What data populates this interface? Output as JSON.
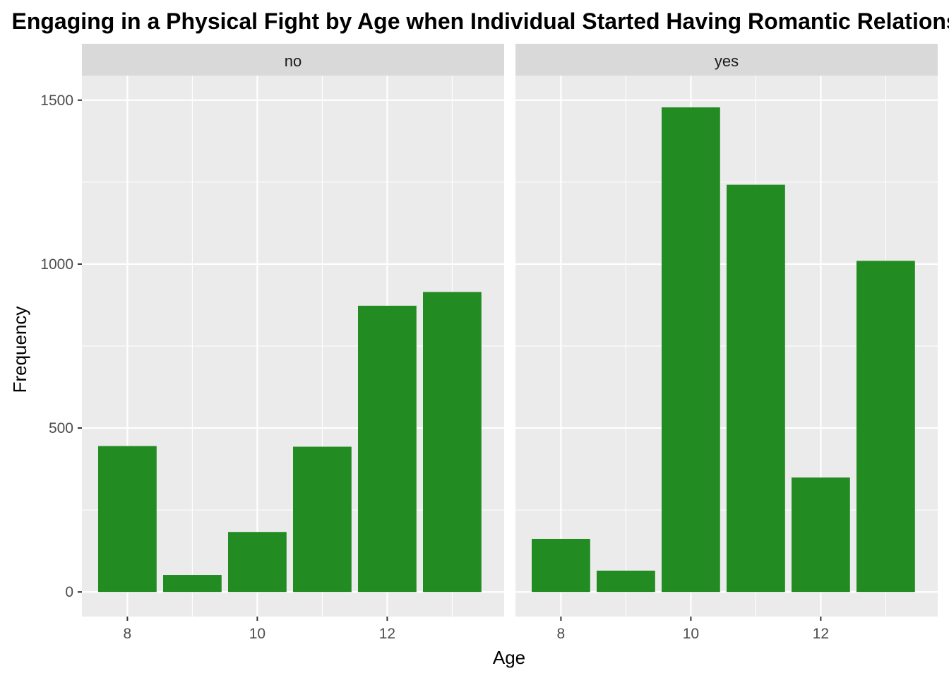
{
  "chart_data": {
    "type": "bar",
    "title": "Engaging in a Physical Fight by Age when Individual Started Having Romantic Relationships",
    "xlabel": "Age",
    "ylabel": "Frequency",
    "x": [
      8,
      9,
      10,
      11,
      12,
      13
    ],
    "x_ticks": [
      8,
      10,
      12
    ],
    "y_ticks": [
      0,
      500,
      1000,
      1500
    ],
    "xlim": [
      7.3,
      13.8
    ],
    "ylim": [
      -75,
      1575
    ],
    "grid": true,
    "bar_color": "#228B22",
    "panel_background": "#EBEBEB",
    "strip_background": "#D9D9D9",
    "facets": [
      {
        "label": "no",
        "values": [
          445,
          52,
          183,
          443,
          873,
          915
        ]
      },
      {
        "label": "yes",
        "values": [
          162,
          65,
          1478,
          1242,
          349,
          1010
        ]
      }
    ]
  }
}
